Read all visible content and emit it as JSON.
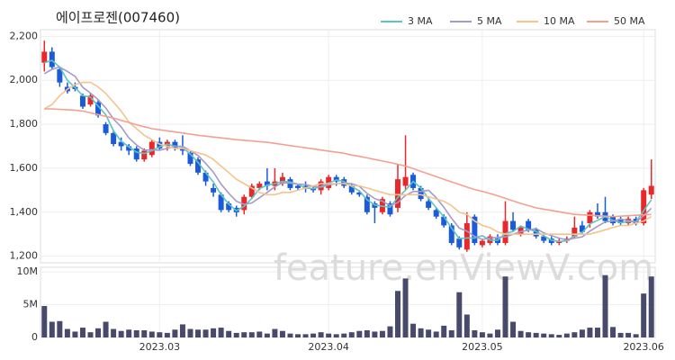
{
  "chart_data": {
    "type": "candlestick",
    "title": "에이프로젠(007460)",
    "watermark": "feature.enViewV.com",
    "categories": [
      null,
      null,
      null,
      null,
      null,
      null,
      null,
      null,
      null,
      null,
      null,
      null,
      null,
      null,
      null,
      "2023.03",
      null,
      null,
      null,
      null,
      null,
      null,
      null,
      null,
      null,
      null,
      null,
      null,
      null,
      null,
      null,
      null,
      null,
      null,
      null,
      null,
      null,
      "2023.04",
      null,
      null,
      null,
      null,
      null,
      null,
      null,
      null,
      null,
      null,
      null,
      null,
      null,
      null,
      null,
      null,
      null,
      null,
      null,
      "2023.05",
      null,
      null,
      null,
      null,
      null,
      null,
      null,
      null,
      null,
      null,
      null,
      null,
      null,
      null,
      null,
      null,
      null,
      null,
      null,
      null,
      "2023.06",
      null
    ],
    "open": [
      2080,
      2130,
      2050,
      1970,
      1970,
      1930,
      1890,
      1900,
      1800,
      1760,
      1720,
      1700,
      1690,
      1640,
      1660,
      1720,
      1700,
      1720,
      1690,
      1670,
      1640,
      1580,
      1510,
      1480,
      1440,
      1420,
      1410,
      1470,
      1510,
      1540,
      1520,
      1530,
      1550,
      1520,
      1520,
      1510,
      1500,
      1510,
      1560,
      1550,
      1520,
      1490,
      1470,
      1440,
      1400,
      1440,
      1420,
      1520,
      1570,
      1510,
      1450,
      1410,
      1380,
      1340,
      1280,
      1230,
      1380,
      1250,
      1260,
      1280,
      1260,
      1360,
      1300,
      1360,
      1320,
      1290,
      1280,
      1260,
      1270,
      1290,
      1340,
      1350,
      1400,
      1400,
      1380,
      1370,
      1350,
      1370,
      1350,
      1480
    ],
    "high": [
      2180,
      2150,
      2060,
      1990,
      1990,
      1940,
      1940,
      1910,
      1810,
      1770,
      1740,
      1710,
      1700,
      1690,
      1730,
      1740,
      1730,
      1730,
      1750,
      1680,
      1650,
      1590,
      1530,
      1490,
      1450,
      1430,
      1480,
      1530,
      1540,
      1600,
      1600,
      1580,
      1560,
      1530,
      1540,
      1520,
      1550,
      1570,
      1570,
      1560,
      1530,
      1500,
      1480,
      1450,
      1470,
      1450,
      1620,
      1750,
      1580,
      1520,
      1460,
      1420,
      1390,
      1350,
      1290,
      1400,
      1390,
      1280,
      1300,
      1300,
      1450,
      1400,
      1340,
      1370,
      1330,
      1300,
      1290,
      1280,
      1290,
      1380,
      1360,
      1410,
      1440,
      1470,
      1390,
      1380,
      1380,
      1380,
      1510,
      1640
    ],
    "low": [
      2040,
      2050,
      1970,
      1940,
      1950,
      1870,
      1880,
      1830,
      1750,
      1700,
      1680,
      1660,
      1630,
      1630,
      1650,
      1680,
      1680,
      1680,
      1660,
      1610,
      1570,
      1520,
      1470,
      1400,
      1400,
      1380,
      1390,
      1460,
      1500,
      1500,
      1500,
      1520,
      1500,
      1500,
      1490,
      1490,
      1480,
      1500,
      1520,
      1510,
      1480,
      1470,
      1390,
      1350,
      1390,
      1380,
      1400,
      1500,
      1500,
      1450,
      1410,
      1370,
      1330,
      1250,
      1230,
      1220,
      1250,
      1240,
      1250,
      1250,
      1250,
      1310,
      1290,
      1310,
      1280,
      1260,
      1250,
      1250,
      1260,
      1280,
      1300,
      1330,
      1370,
      1350,
      1340,
      1340,
      1340,
      1340,
      1340,
      1460
    ],
    "close": [
      2130,
      2060,
      1990,
      1950,
      1960,
      1880,
      1930,
      1840,
      1760,
      1710,
      1700,
      1680,
      1640,
      1680,
      1720,
      1690,
      1720,
      1690,
      1680,
      1620,
      1580,
      1540,
      1490,
      1410,
      1410,
      1400,
      1470,
      1520,
      1530,
      1520,
      1540,
      1560,
      1510,
      1510,
      1510,
      1500,
      1540,
      1560,
      1540,
      1520,
      1490,
      1480,
      1400,
      1420,
      1460,
      1390,
      1550,
      1560,
      1510,
      1460,
      1420,
      1380,
      1340,
      1260,
      1240,
      1350,
      1260,
      1270,
      1290,
      1260,
      1360,
      1320,
      1330,
      1320,
      1290,
      1270,
      1260,
      1270,
      1280,
      1330,
      1310,
      1400,
      1380,
      1360,
      1350,
      1350,
      1370,
      1350,
      1500,
      1520
    ],
    "up_color": "#e8282b",
    "down_color": "#1a5adb",
    "ylim": [
      1170,
      2230
    ],
    "yticks": [
      {
        "value": 1200,
        "label": "1,200"
      },
      {
        "value": 1400,
        "label": "1,400"
      },
      {
        "value": 1600,
        "label": "1,600"
      },
      {
        "value": 1800,
        "label": "1,800"
      },
      {
        "value": 2000,
        "label": "2,000"
      },
      {
        "value": 2200,
        "label": "2,200"
      }
    ],
    "series": [
      {
        "name": "3 MA",
        "color": "#5cc5c0",
        "values": [
          2080,
          2090,
          2060,
          2000,
          1967,
          1930,
          1923,
          1883,
          1843,
          1770,
          1723,
          1697,
          1673,
          1667,
          1680,
          1697,
          1710,
          1700,
          1697,
          1663,
          1627,
          1580,
          1537,
          1480,
          1437,
          1407,
          1427,
          1463,
          1507,
          1523,
          1530,
          1540,
          1537,
          1527,
          1510,
          1507,
          1517,
          1533,
          1547,
          1540,
          1517,
          1497,
          1457,
          1433,
          1427,
          1423,
          1467,
          1500,
          1540,
          1510,
          1463,
          1420,
          1380,
          1327,
          1280,
          1283,
          1283,
          1293,
          1273,
          1273,
          1303,
          1313,
          1337,
          1323,
          1313,
          1293,
          1273,
          1267,
          1270,
          1293,
          1307,
          1347,
          1363,
          1380,
          1363,
          1353,
          1357,
          1357,
          1407,
          1457
        ]
      },
      {
        "name": "5 MA",
        "color": "#a59ac9",
        "values": [
          2030,
          2050,
          2060,
          2040,
          2018,
          1968,
          1942,
          1912,
          1874,
          1824,
          1788,
          1738,
          1706,
          1682,
          1684,
          1682,
          1690,
          1700,
          1700,
          1680,
          1658,
          1622,
          1582,
          1528,
          1486,
          1450,
          1436,
          1442,
          1466,
          1490,
          1516,
          1534,
          1532,
          1528,
          1526,
          1518,
          1514,
          1524,
          1530,
          1532,
          1530,
          1518,
          1486,
          1462,
          1450,
          1430,
          1444,
          1476,
          1494,
          1494,
          1500,
          1466,
          1422,
          1372,
          1328,
          1314,
          1290,
          1276,
          1282,
          1286,
          1288,
          1300,
          1312,
          1318,
          1326,
          1306,
          1294,
          1282,
          1274,
          1282,
          1288,
          1314,
          1336,
          1356,
          1360,
          1368,
          1362,
          1356,
          1384,
          1418
        ]
      },
      {
        "name": "10 MA",
        "color": "#f4c38e",
        "values": [
          1870,
          1890,
          1930,
          1960,
          1980,
          1990,
          1990,
          1970,
          1940,
          1900,
          1860,
          1810,
          1780,
          1750,
          1730,
          1710,
          1700,
          1690,
          1690,
          1680,
          1670,
          1660,
          1640,
          1610,
          1580,
          1550,
          1530,
          1510,
          1490,
          1480,
          1480,
          1490,
          1490,
          1500,
          1510,
          1520,
          1530,
          1530,
          1530,
          1530,
          1520,
          1520,
          1510,
          1500,
          1490,
          1480,
          1480,
          1480,
          1480,
          1480,
          1470,
          1460,
          1450,
          1430,
          1400,
          1390,
          1360,
          1340,
          1330,
          1310,
          1300,
          1300,
          1300,
          1300,
          1300,
          1300,
          1300,
          1300,
          1300,
          1300,
          1300,
          1300,
          1310,
          1320,
          1330,
          1340,
          1340,
          1350,
          1360,
          1380
        ]
      },
      {
        "name": "50 MA",
        "color": "#f4a090",
        "values": [
          1870,
          1870,
          1868,
          1866,
          1864,
          1860,
          1852,
          1844,
          1836,
          1828,
          1818,
          1808,
          1798,
          1789,
          1780,
          1775,
          1770,
          1765,
          1760,
          1755,
          1750,
          1746,
          1742,
          1738,
          1734,
          1730,
          1727,
          1724,
          1721,
          1718,
          1713,
          1708,
          1703,
          1698,
          1693,
          1688,
          1683,
          1678,
          1673,
          1668,
          1660,
          1654,
          1647,
          1640,
          1633,
          1626,
          1618,
          1610,
          1598,
          1586,
          1574,
          1562,
          1550,
          1538,
          1526,
          1514,
          1503,
          1495,
          1485,
          1475,
          1463,
          1451,
          1440,
          1430,
          1420,
          1414,
          1408,
          1402,
          1396,
          1390,
          1388,
          1386,
          1384,
          1382,
          1380,
          1382,
          1384,
          1386,
          1388,
          1390
        ]
      }
    ],
    "volume": {
      "color": "#474a6b",
      "ylim": [
        0,
        10.7
      ],
      "yticks": [
        0,
        {
          "value": 5,
          "label": "5M"
        },
        {
          "value": 10,
          "label": "10M"
        }
      ],
      "values": [
        4.8,
        2.4,
        2.5,
        1.3,
        0.9,
        1.5,
        0.8,
        1.4,
        2.4,
        1.3,
        1.0,
        1.2,
        1.1,
        1.1,
        0.9,
        0.8,
        0.7,
        1.2,
        2.0,
        1.3,
        1.2,
        1.2,
        1.4,
        1.5,
        1.0,
        0.7,
        0.8,
        0.8,
        0.9,
        0.6,
        1.3,
        1.0,
        0.6,
        0.5,
        0.5,
        0.6,
        0.8,
        0.6,
        0.5,
        0.6,
        0.8,
        1.0,
        1.1,
        0.9,
        1.0,
        1.7,
        7.1,
        9.0,
        2.1,
        1.4,
        1.2,
        0.9,
        1.8,
        1.1,
        6.9,
        3.5,
        1.1,
        0.8,
        0.6,
        1.2,
        9.3,
        2.4,
        1.0,
        0.8,
        0.7,
        0.6,
        0.5,
        0.4,
        0.6,
        0.8,
        1.2,
        1.5,
        1.5,
        9.5,
        1.6,
        0.7,
        0.7,
        0.5,
        6.7,
        9.3
      ]
    }
  }
}
